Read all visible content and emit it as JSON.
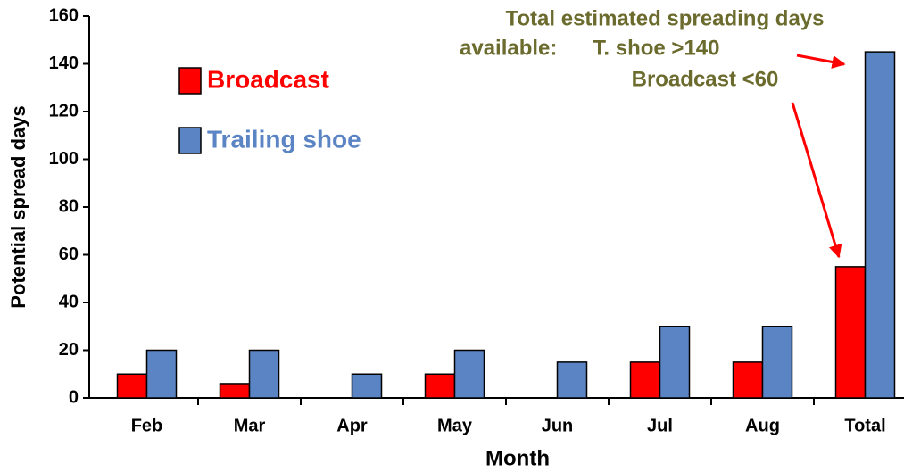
{
  "chart_data": {
    "type": "bar",
    "categories": [
      "Feb",
      "Mar",
      "Apr",
      "May",
      "Jun",
      "Jul",
      "Aug",
      "Total"
    ],
    "series": [
      {
        "name": "Broadcast",
        "color": "#ff0000",
        "values": [
          10,
          6,
          0,
          10,
          0,
          15,
          15,
          55
        ]
      },
      {
        "name": "Trailing shoe",
        "color": "#5b84c4",
        "values": [
          20,
          20,
          10,
          20,
          15,
          30,
          30,
          145
        ]
      }
    ],
    "ylim": [
      0,
      160
    ],
    "yticks": [
      0,
      20,
      40,
      60,
      80,
      100,
      120,
      140,
      160
    ],
    "xlabel": "Month",
    "ylabel": "Potential spread days",
    "annotations": [
      "Total estimated spreading days",
      "available:      T. shoe >140",
      "Broadcast <60"
    ]
  }
}
